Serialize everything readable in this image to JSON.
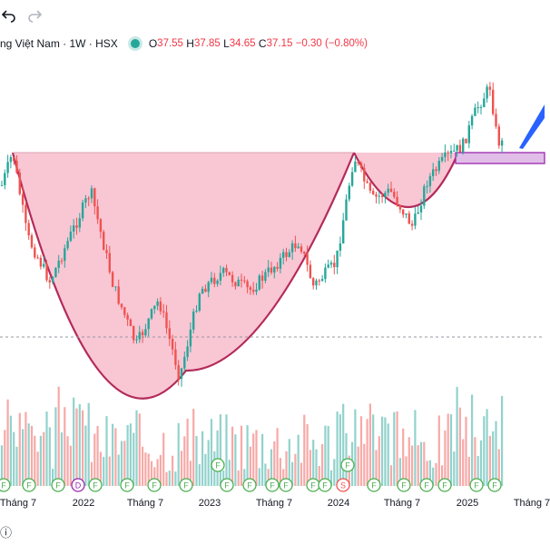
{
  "header": {
    "symbol_title": "ng Việt Nam · 1W · HSX",
    "ohlc": {
      "o_label": "O",
      "o": "37.55",
      "h_label": "H",
      "h": "37.85",
      "l_label": "L",
      "l": "34.65",
      "c_label": "C",
      "c": "37.15",
      "change": "−0.30 (−0.80%)"
    }
  },
  "toolbar": {
    "undo_icon": "undo-icon",
    "redo_icon": "redo-icon"
  },
  "x_axis": {
    "labels": [
      "Tháng 7",
      "2022",
      "Tháng 7",
      "2023",
      "Tháng 7",
      "2024",
      "Tháng 7",
      "2025",
      "Tháng 7"
    ]
  },
  "events": {
    "markers": [
      "F",
      "F",
      "F",
      "D",
      "F",
      "F",
      "F",
      "F",
      "F",
      "F",
      "F",
      "F",
      "F",
      "F",
      "F",
      "S",
      "F",
      "F",
      "F",
      "F",
      "F",
      "F",
      "F",
      "F"
    ]
  },
  "bottom": {
    "icon_text": "ⓘ"
  },
  "colors": {
    "up": "#26a69a",
    "down": "#ef5350",
    "cup_fill": "#f7b3c6",
    "cup_line": "#b32b5a",
    "zone": "#e1bee7",
    "arrow": "#2962ff"
  },
  "chart_data": {
    "type": "candlestick",
    "timeframe": "1W",
    "price_range_visible": [
      10,
      44
    ],
    "pattern": "cup-and-handle",
    "annotations": [
      "cup",
      "handle",
      "breakout-zone",
      "arrow-up"
    ]
  }
}
